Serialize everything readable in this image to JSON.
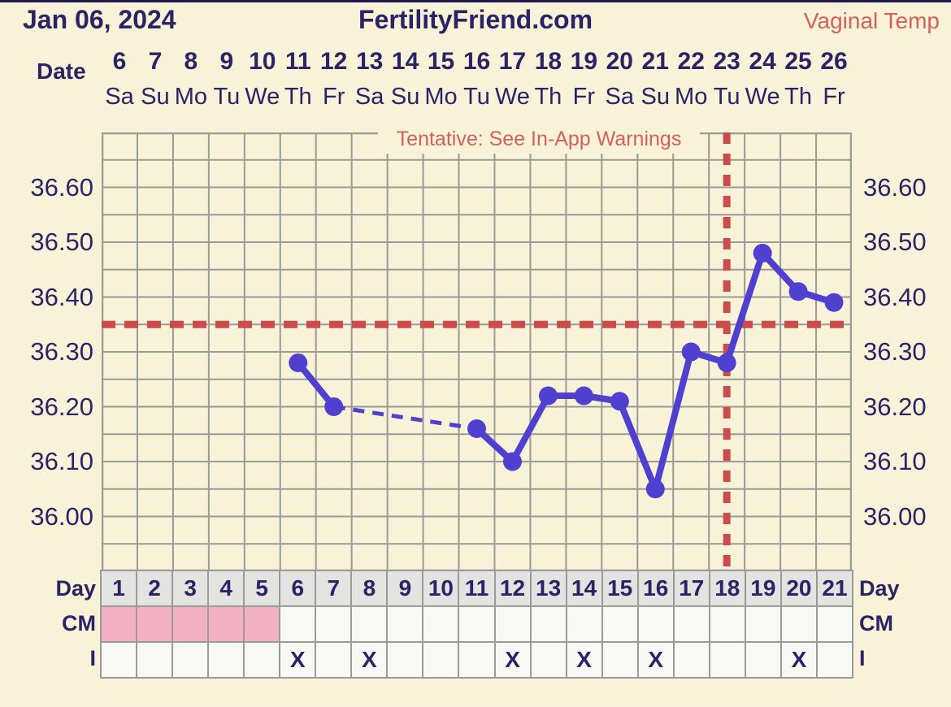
{
  "header": {
    "date": "Jan 06, 2024",
    "site": "FertilityFriend.com",
    "temp_label": "Vaginal Temp"
  },
  "warning": "Tentative: See In-App Warnings",
  "date_axis": {
    "label": "Date",
    "dates": [
      6,
      7,
      8,
      9,
      10,
      11,
      12,
      13,
      14,
      15,
      16,
      17,
      18,
      19,
      20,
      21,
      22,
      23,
      24,
      25,
      26
    ],
    "weekdays": [
      "Sa",
      "Su",
      "Mo",
      "Tu",
      "We",
      "Th",
      "Fr",
      "Sa",
      "Su",
      "Mo",
      "Tu",
      "We",
      "Th",
      "Fr",
      "Sa",
      "Su",
      "Mo",
      "Tu",
      "We",
      "Th",
      "Fr"
    ]
  },
  "chart_data": {
    "type": "line",
    "title": "Basal body temperature chart",
    "series_name": "Vaginal Temp",
    "x_days": 21,
    "points": [
      {
        "day": 6,
        "temp": 36.28
      },
      {
        "day": 7,
        "temp": 36.2
      },
      {
        "day": 11,
        "temp": 36.16
      },
      {
        "day": 12,
        "temp": 36.1
      },
      {
        "day": 13,
        "temp": 36.22
      },
      {
        "day": 14,
        "temp": 36.22
      },
      {
        "day": 15,
        "temp": 36.21
      },
      {
        "day": 16,
        "temp": 36.05
      },
      {
        "day": 17,
        "temp": 36.3
      },
      {
        "day": 18,
        "temp": 36.28
      },
      {
        "day": 19,
        "temp": 36.48
      },
      {
        "day": 20,
        "temp": 36.41
      },
      {
        "day": 21,
        "temp": 36.39
      }
    ],
    "missing_data_gap": [
      7,
      11
    ],
    "coverline_temp": 36.35,
    "ovulation_line_day": 18,
    "ylim": [
      35.9,
      36.7
    ],
    "ytick_step": 0.05,
    "yticks_labeled": [
      "36.60",
      "36.50",
      "36.40",
      "36.30",
      "36.20",
      "36.10",
      "36.00"
    ],
    "grid": true,
    "legend_position": "none"
  },
  "bottom": {
    "day_label": "Day",
    "days": [
      1,
      2,
      3,
      4,
      5,
      6,
      7,
      8,
      9,
      10,
      11,
      12,
      13,
      14,
      15,
      16,
      17,
      18,
      19,
      20,
      21
    ],
    "cm_label": "CM",
    "cm_menses_days": [
      1,
      2,
      3,
      4,
      5
    ],
    "i_label": "I",
    "i_marked_days": [
      6,
      8,
      12,
      14,
      16,
      20
    ],
    "x_mark": "X"
  },
  "colors": {
    "background_cream": "#f8f2d9",
    "text_navy": "#2b2365",
    "accent_salmon": "#d4605e",
    "line_blue": "#4f40cf",
    "dash_red": "#cc4b4b",
    "gridline_gray": "#9a9a96",
    "day_row_gray": "#e3e3e2",
    "menses_pink": "#f3b0c4",
    "cell_offwhite": "#f8f8f4"
  }
}
